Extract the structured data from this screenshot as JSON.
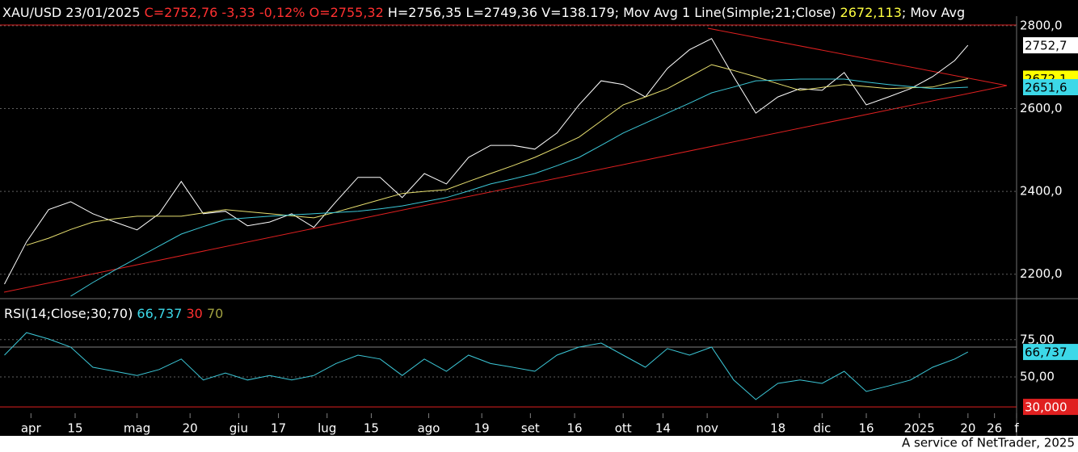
{
  "header": {
    "symbol": "XAU/USD 23/01/2025",
    "quote": "C=2752,76 -3,33 -0,12% O=2755,32",
    "range": "H=2756,35 L=2749,36 V=138.179",
    "ma1": "; Mov Avg 1 Line(Simple;21;Close)",
    "ma1_value": "2672,113",
    "ma2": "; Mov Avg"
  },
  "footer": "A service of NetTrader, 2025",
  "chart_data": [
    {
      "type": "line",
      "x": [
        0,
        5,
        10,
        15,
        20,
        25,
        30,
        35,
        40,
        45,
        50,
        55,
        60,
        65,
        70,
        75,
        80,
        85,
        90,
        95,
        100,
        105,
        110,
        115,
        120,
        125,
        130,
        135,
        140,
        145,
        150,
        155,
        160,
        165,
        170,
        175,
        180,
        185,
        190,
        195,
        200,
        205,
        210,
        215,
        218
      ],
      "xlim": [
        -1,
        229
      ],
      "ylim": [
        2141,
        2827
      ],
      "yticks": [
        {
          "value": 2800,
          "label": "2800,0"
        },
        {
          "value": 2600,
          "label": "2600,0"
        },
        {
          "value": 2400,
          "label": "2400,0"
        },
        {
          "value": 2200,
          "label": "2200,0"
        }
      ],
      "grid": true,
      "series": [
        {
          "color": "#ffffff",
          "values": [
            2176,
            2278,
            2356,
            2375,
            2346,
            2326,
            2307,
            2346,
            2424,
            2346,
            2352,
            2317,
            2326,
            2346,
            2313,
            2375,
            2434,
            2434,
            2385,
            2443,
            2418,
            2482,
            2511,
            2511,
            2502,
            2541,
            2609,
            2667,
            2658,
            2628,
            2697,
            2742,
            2769,
            2677,
            2589,
            2628,
            2648,
            2644,
            2687,
            2609,
            2628,
            2648,
            2677,
            2716,
            2752.76
          ]
        },
        {
          "color": "#e8e070",
          "values": [
            null,
            2270,
            2287,
            2308,
            2326,
            2334,
            2340,
            2340,
            2340,
            2348,
            2356,
            2351,
            2346,
            2341,
            2336,
            2350,
            2365,
            2380,
            2395,
            2400,
            2404,
            2424,
            2443,
            2462,
            2482,
            2506,
            2531,
            2570,
            2609,
            2628,
            2648,
            2677,
            2706,
            2692,
            2677,
            2660,
            2644,
            2651,
            2658,
            2653,
            2648,
            2650,
            2652,
            2665,
            2672.113
          ]
        },
        {
          "color": "#3cc8d8",
          "values": [
            null,
            null,
            null,
            2147,
            2180,
            2210,
            2239,
            2268,
            2297,
            2315,
            2332,
            2336,
            2340,
            2343,
            2346,
            2349,
            2352,
            2358,
            2365,
            2375,
            2385,
            2401,
            2418,
            2430,
            2443,
            2462,
            2482,
            2511,
            2541,
            2565,
            2589,
            2613,
            2638,
            2652,
            2667,
            2669,
            2671,
            2671,
            2671,
            2664,
            2658,
            2653,
            2648,
            2650,
            2651.6
          ]
        }
      ],
      "badges": [
        {
          "value": 2752.7,
          "label": "2752,7",
          "color": "#ffffff"
        },
        {
          "value": 2672.1,
          "label": "2672,1",
          "color": "#ffff00"
        },
        {
          "value": 2651.6,
          "label": "2651,6",
          "color": "#3cd8e8"
        }
      ]
    },
    {
      "type": "line",
      "title": "RSI(14;Close;30;70)",
      "x": [
        0,
        5,
        10,
        15,
        20,
        25,
        30,
        35,
        40,
        45,
        50,
        55,
        60,
        65,
        70,
        75,
        80,
        85,
        90,
        95,
        100,
        105,
        110,
        115,
        120,
        125,
        130,
        135,
        140,
        145,
        150,
        155,
        160,
        165,
        170,
        175,
        180,
        185,
        190,
        195,
        200,
        205,
        210,
        215,
        218
      ],
      "xlim": [
        -1,
        229
      ],
      "xticks": [
        {
          "value": 6,
          "label": "apr"
        },
        {
          "value": 16,
          "label": "15"
        },
        {
          "value": 30,
          "label": "mag"
        },
        {
          "value": 42,
          "label": "20"
        },
        {
          "value": 53,
          "label": "giu"
        },
        {
          "value": 62,
          "label": "17"
        },
        {
          "value": 73,
          "label": "lug"
        },
        {
          "value": 83,
          "label": "15"
        },
        {
          "value": 96,
          "label": "ago"
        },
        {
          "value": 108,
          "label": "19"
        },
        {
          "value": 119,
          "label": "set"
        },
        {
          "value": 129,
          "label": "16"
        },
        {
          "value": 140,
          "label": "ott"
        },
        {
          "value": 149,
          "label": "14"
        },
        {
          "value": 159,
          "label": "nov"
        },
        {
          "value": 175,
          "label": "18"
        },
        {
          "value": 185,
          "label": "dic"
        },
        {
          "value": 195,
          "label": "16"
        },
        {
          "value": 207,
          "label": "2025"
        },
        {
          "value": 218,
          "label": "20"
        },
        {
          "value": 224,
          "label": "26"
        },
        {
          "value": 229,
          "label": "f"
        }
      ],
      "ylim": [
        26.8,
        98.1
      ],
      "yticks": [
        {
          "value": 75,
          "label": "75,00"
        },
        {
          "value": 50,
          "label": "50,00"
        }
      ],
      "grid": true,
      "ref_lines": [
        {
          "value": 70,
          "color": "#808080"
        },
        {
          "value": 30,
          "color": "#e02020"
        }
      ],
      "series": [
        {
          "color": "#3cc8d8",
          "values": [
            64.6,
            79.7,
            75.4,
            70,
            56.5,
            53.8,
            51,
            55,
            62,
            48,
            52.7,
            48,
            51,
            48,
            51,
            59,
            64.6,
            62,
            51,
            62,
            53.8,
            64.6,
            59,
            56.5,
            53.8,
            64.6,
            70,
            72.7,
            64.6,
            56.5,
            69,
            64.6,
            70,
            48,
            34.9,
            45.7,
            48,
            45.7,
            53.8,
            40.3,
            44,
            48,
            56.5,
            62,
            66.737
          ]
        }
      ],
      "badges": [
        {
          "value": 66.737,
          "label": "66,737",
          "color": "#3cd8e8"
        },
        {
          "value": 30,
          "label": "30,000",
          "color": "#e02020"
        }
      ]
    }
  ]
}
